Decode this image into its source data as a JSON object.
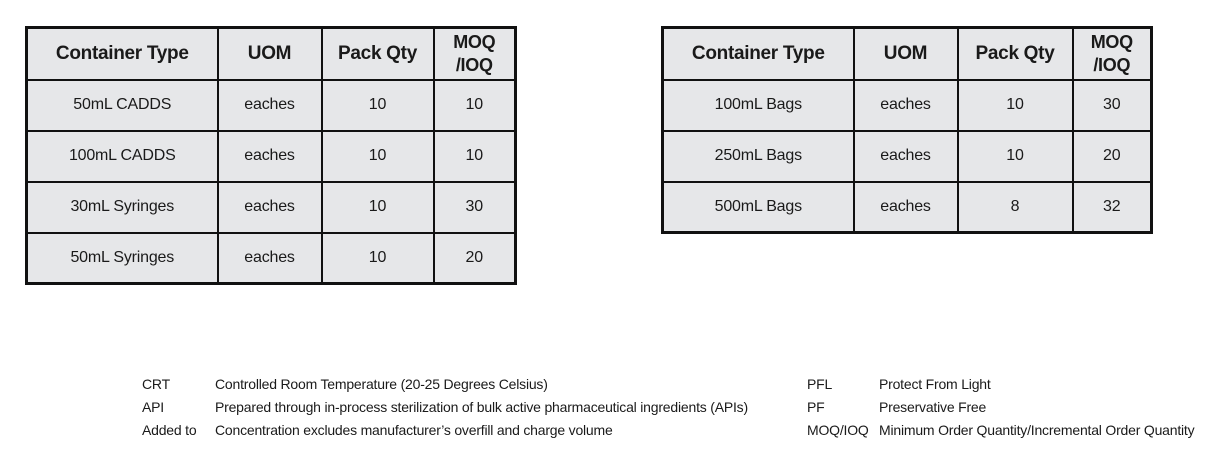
{
  "tables": [
    {
      "headers": [
        "Container Type",
        "UOM",
        "Pack Qty",
        "MOQ\n/IOQ"
      ],
      "rows": [
        [
          "50mL CADDS",
          "eaches",
          "10",
          "10"
        ],
        [
          "100mL CADDS",
          "eaches",
          "10",
          "10"
        ],
        [
          "30mL Syringes",
          "eaches",
          "10",
          "30"
        ],
        [
          "50mL Syringes",
          "eaches",
          "10",
          "20"
        ]
      ]
    },
    {
      "headers": [
        "Container Type",
        "UOM",
        "Pack Qty",
        "MOQ\n/IOQ"
      ],
      "rows": [
        [
          "100mL Bags",
          "eaches",
          "10",
          "30"
        ],
        [
          "250mL Bags",
          "eaches",
          "10",
          "20"
        ],
        [
          "500mL Bags",
          "eaches",
          "8",
          "32"
        ]
      ]
    }
  ],
  "legend_left": [
    {
      "abbr": "CRT",
      "desc": "Controlled Room Temperature (20-25 Degrees Celsius)"
    },
    {
      "abbr": "API",
      "desc": "Prepared through in-process sterilization of bulk active pharmaceutical ingredients (APIs)"
    },
    {
      "abbr": "Added to",
      "desc": "Concentration excludes manufacturer’s overfill and charge volume"
    }
  ],
  "legend_right": [
    {
      "abbr": "PFL",
      "desc": "Protect From Light"
    },
    {
      "abbr": "PF",
      "desc": "Preservative Free"
    },
    {
      "abbr": "MOQ/IOQ",
      "desc": "Minimum Order Quantity/Incremental Order Quantity"
    }
  ]
}
